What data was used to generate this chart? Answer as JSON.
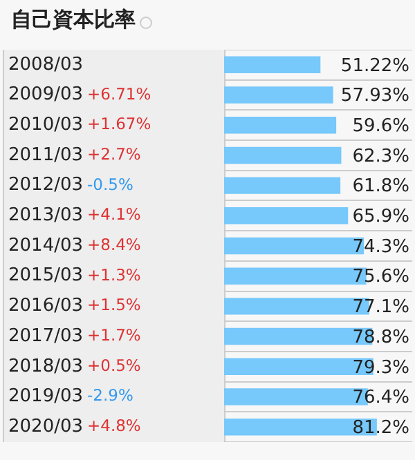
{
  "chart_data": {
    "type": "bar",
    "orientation": "horizontal",
    "title": "自己資本比率",
    "categories": [
      "2008/03",
      "2009/03",
      "2010/03",
      "2011/03",
      "2012/03",
      "2013/03",
      "2014/03",
      "2015/03",
      "2016/03",
      "2017/03",
      "2018/03",
      "2019/03",
      "2020/03"
    ],
    "values": [
      51.22,
      57.93,
      59.6,
      62.3,
      61.8,
      65.9,
      74.3,
      75.6,
      77.1,
      78.8,
      79.3,
      76.4,
      81.2
    ],
    "value_labels": [
      "51.22%",
      "57.93%",
      "59.6%",
      "62.3%",
      "61.8%",
      "65.9%",
      "74.3%",
      "75.6%",
      "77.1%",
      "78.8%",
      "79.3%",
      "76.4%",
      "81.2%"
    ],
    "color": "#77c8fb",
    "xlim": [
      0,
      100
    ],
    "tick_labels": "y",
    "grid": "y",
    "legend": false,
    "annotations": [
      "+6.71%",
      "+1.67%",
      "+2.7%",
      "-0.5%",
      "+4.1%",
      "+8.4%",
      "+1.3%",
      "+1.5%",
      "+1.7%",
      "+0.5%",
      "-2.9%",
      "+4.8%"
    ]
  }
}
